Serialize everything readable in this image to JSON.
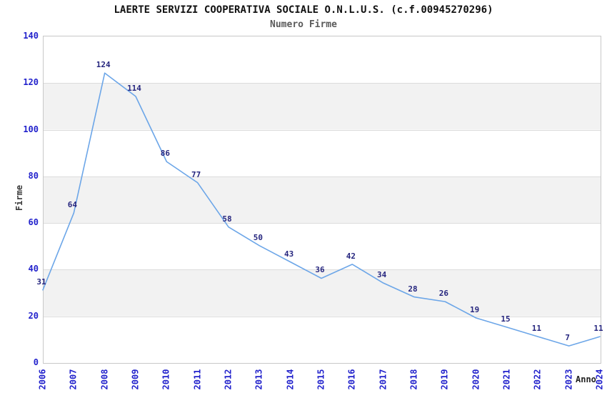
{
  "header": {
    "title": "LAERTE SERVIZI COOPERATIVA SOCIALE O.N.L.U.S. (c.f.00945270296)",
    "subtitle": "Numero Firme"
  },
  "chart_data": {
    "type": "line",
    "title": "LAERTE SERVIZI COOPERATIVA SOCIALE O.N.L.U.S. (c.f.00945270296)",
    "subtitle": "Numero Firme",
    "xlabel": "Anno",
    "ylabel": "Firme",
    "x": [
      2006,
      2007,
      2008,
      2009,
      2010,
      2011,
      2012,
      2013,
      2014,
      2015,
      2016,
      2017,
      2018,
      2019,
      2020,
      2021,
      2022,
      2023,
      2024
    ],
    "values": [
      31,
      64,
      124,
      114,
      86,
      77,
      58,
      50,
      43,
      36,
      42,
      34,
      28,
      26,
      19,
      15,
      11,
      7,
      11
    ],
    "ylim": [
      0,
      140
    ],
    "ytick_step": 20,
    "grid": true,
    "legend_position": "none",
    "colors": {
      "line": "#6ca6e8",
      "tick_labels": "#2222cc",
      "point_labels": "#26267f",
      "band_light": "#ffffff",
      "band_gray": "#f2f2f2",
      "plot_border": "#c8c8c8",
      "gridline": "#dcdcdc",
      "title": "#111111",
      "subtitle": "#5a5a5a"
    }
  }
}
